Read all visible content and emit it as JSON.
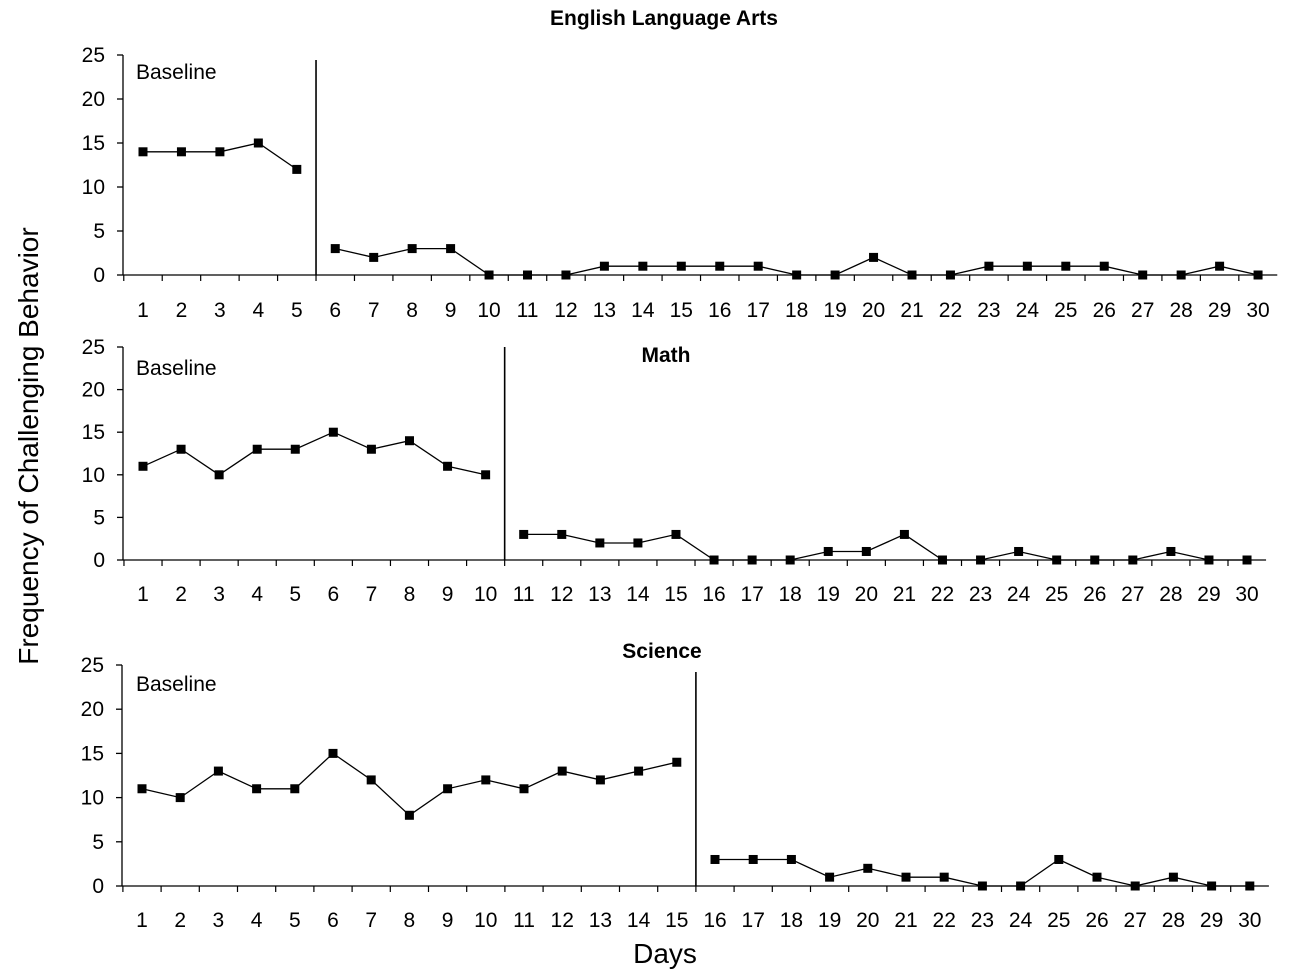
{
  "figure": {
    "ylabel": "Frequency of Challenging Behavior",
    "xlabel": "Days"
  },
  "chart_data": [
    {
      "type": "line",
      "title": "English Language Arts",
      "phase_label": "Baseline",
      "ylim": [
        0,
        25
      ],
      "yticks": [
        0,
        5,
        10,
        15,
        20,
        25
      ],
      "phase_change_after_day": 5,
      "categories": [
        1,
        2,
        3,
        4,
        5,
        6,
        7,
        8,
        9,
        10,
        11,
        12,
        13,
        14,
        15,
        16,
        17,
        18,
        19,
        20,
        21,
        22,
        23,
        24,
        25,
        26,
        27,
        28,
        29,
        30
      ],
      "series": [
        {
          "x": [
            1,
            2,
            3,
            4,
            5
          ],
          "values": [
            14,
            14,
            14,
            15,
            12
          ]
        },
        {
          "x": [
            6,
            7,
            8,
            9,
            10,
            11,
            12,
            13,
            14,
            15,
            16,
            17,
            18,
            19,
            20,
            21,
            22,
            23,
            24,
            25,
            26,
            27,
            28,
            29,
            30
          ],
          "values": [
            3,
            2,
            3,
            3,
            0,
            0,
            0,
            1,
            1,
            1,
            1,
            1,
            0,
            0,
            2,
            0,
            0,
            1,
            1,
            1,
            1,
            0,
            0,
            1,
            0
          ]
        }
      ]
    },
    {
      "type": "line",
      "title": "Math",
      "phase_label": "Baseline",
      "ylim": [
        0,
        25
      ],
      "yticks": [
        0,
        5,
        10,
        15,
        20,
        25
      ],
      "phase_change_after_day": 10,
      "categories": [
        1,
        2,
        3,
        4,
        5,
        6,
        7,
        8,
        9,
        10,
        11,
        12,
        13,
        14,
        15,
        16,
        17,
        18,
        19,
        20,
        21,
        22,
        23,
        24,
        25,
        26,
        27,
        28,
        29,
        30
      ],
      "series": [
        {
          "x": [
            1,
            2,
            3,
            4,
            5,
            6,
            7,
            8,
            9,
            10
          ],
          "values": [
            11,
            13,
            10,
            13,
            13,
            15,
            13,
            14,
            11,
            10
          ]
        },
        {
          "x": [
            11,
            12,
            13,
            14,
            15,
            16,
            17,
            18,
            19,
            20,
            21,
            22,
            23,
            24,
            25,
            26,
            27,
            28,
            29,
            30
          ],
          "values": [
            3,
            3,
            2,
            2,
            3,
            0,
            0,
            0,
            1,
            1,
            3,
            0,
            0,
            1,
            0,
            0,
            0,
            1,
            0,
            0
          ]
        }
      ]
    },
    {
      "type": "line",
      "title": "Science",
      "phase_label": "Baseline",
      "ylim": [
        0,
        25
      ],
      "yticks": [
        0,
        5,
        10,
        15,
        20,
        25
      ],
      "phase_change_after_day": 15,
      "categories": [
        1,
        2,
        3,
        4,
        5,
        6,
        7,
        8,
        9,
        10,
        11,
        12,
        13,
        14,
        15,
        16,
        17,
        18,
        19,
        20,
        21,
        22,
        23,
        24,
        25,
        26,
        27,
        28,
        29,
        30
      ],
      "series": [
        {
          "x": [
            1,
            2,
            3,
            4,
            5,
            6,
            7,
            8,
            9,
            10,
            11,
            12,
            13,
            14,
            15
          ],
          "values": [
            11,
            10,
            13,
            11,
            11,
            15,
            12,
            8,
            11,
            12,
            11,
            13,
            12,
            13,
            14
          ]
        },
        {
          "x": [
            16,
            17,
            18,
            19,
            20,
            21,
            22,
            23,
            24,
            25,
            26,
            27,
            28,
            29,
            30
          ],
          "values": [
            3,
            3,
            3,
            1,
            2,
            1,
            1,
            0,
            0,
            3,
            1,
            0,
            1,
            0,
            0
          ]
        }
      ]
    }
  ]
}
